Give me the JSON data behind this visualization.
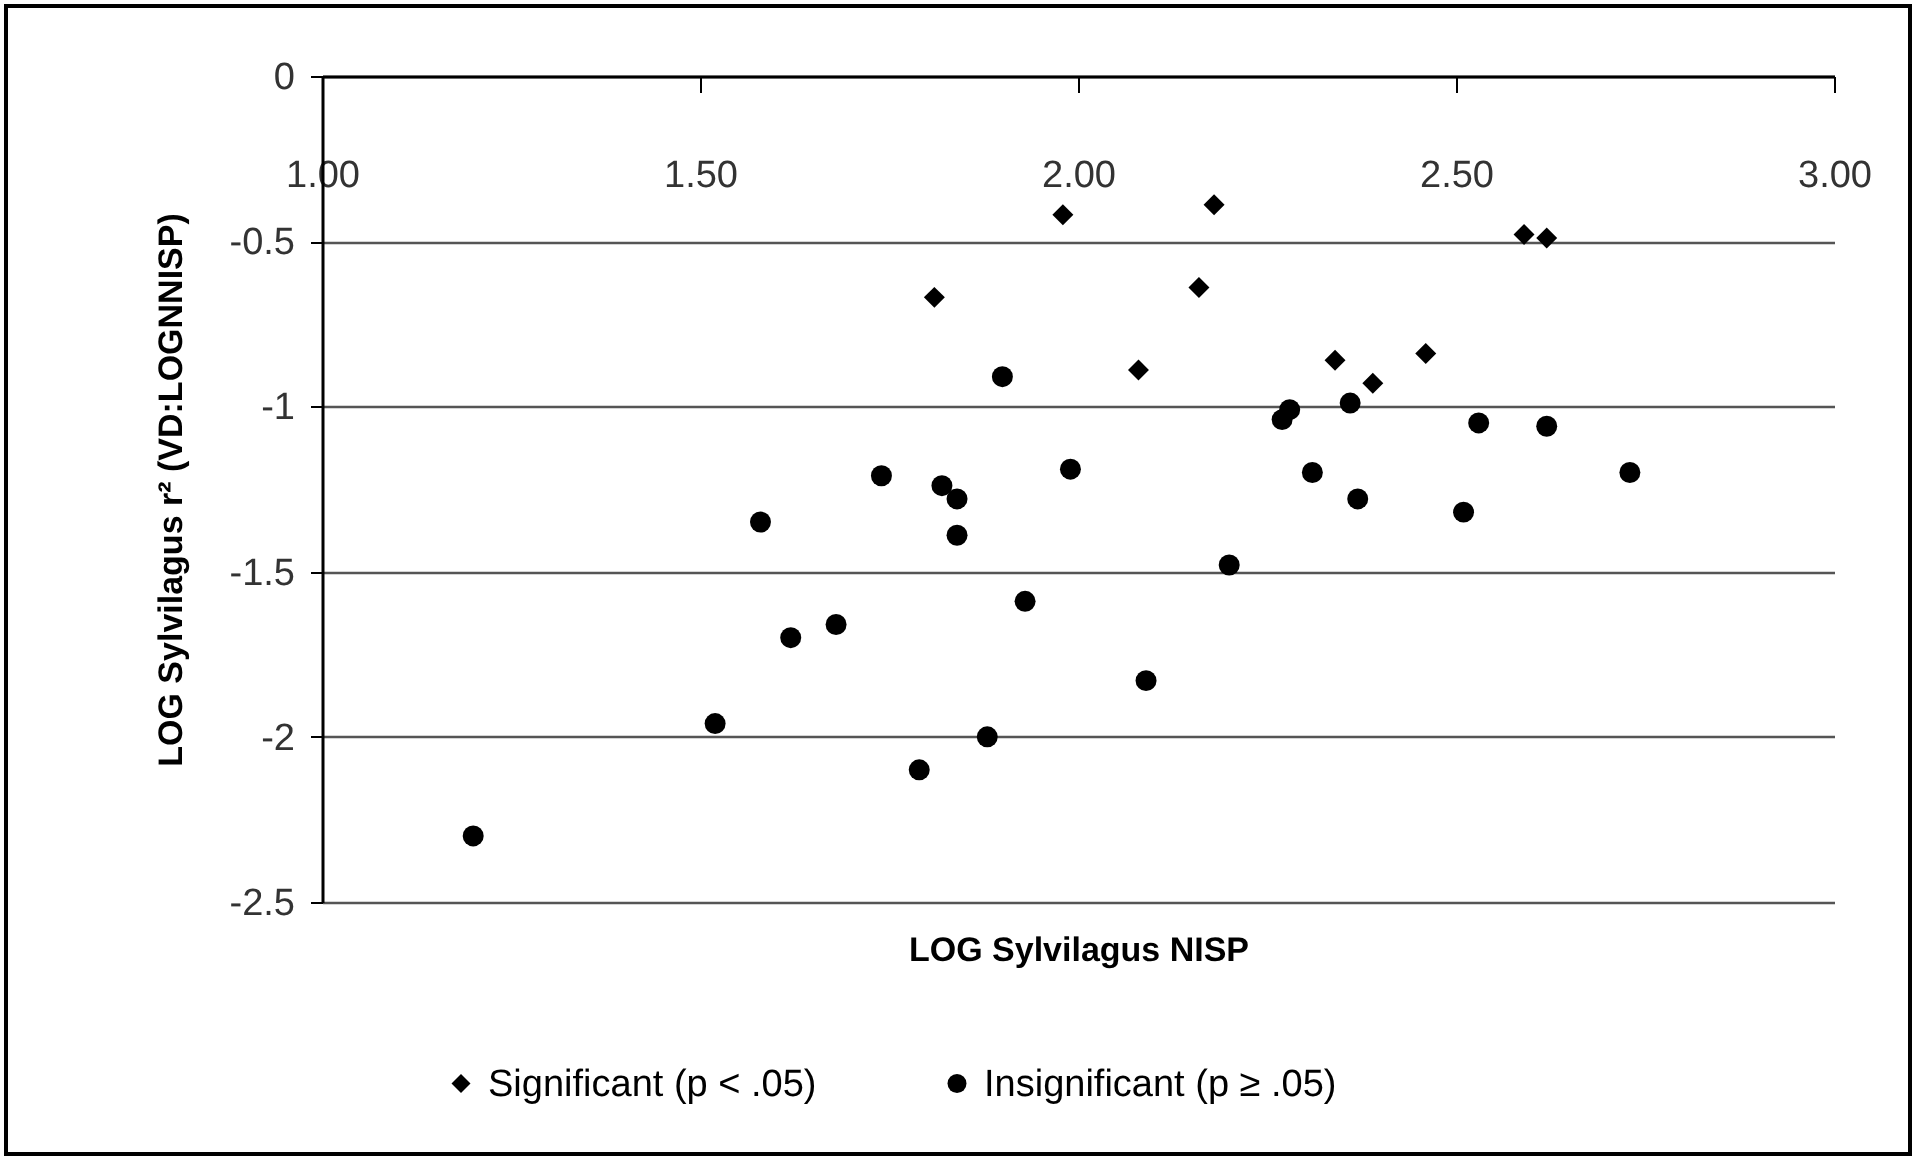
{
  "chart_data": {
    "type": "scatter",
    "xlabel": "LOG Sylvilagus NISP",
    "ylabel": "LOG Sylvilagus r² (VD:LOGNNISP)",
    "xlim": [
      1,
      3
    ],
    "xticks": [
      {
        "value": 1,
        "label": "1.00"
      },
      {
        "value": 1.5,
        "label": "1.50"
      },
      {
        "value": 2,
        "label": "2.00"
      },
      {
        "value": 2.5,
        "label": "2.50"
      },
      {
        "value": 3,
        "label": "3.00"
      }
    ],
    "ylim": [
      -2.5,
      0
    ],
    "yticks": [
      -2.5,
      -2,
      -1.5,
      -1,
      -0.5,
      0
    ],
    "grid": "y",
    "legend": "bottom",
    "series": [
      {
        "name": "Significant (p < .05)",
        "color": "#000000",
        "marker": "diamond",
        "x": [
          1.81,
          1.98,
          2.18,
          2.16,
          2.08,
          2.34,
          2.39,
          2.46,
          2.59,
          2.62
        ],
        "values": [
          -0.67,
          -0.42,
          -0.39,
          -0.64,
          -0.89,
          -0.86,
          -0.93,
          -0.84,
          -0.48,
          -0.49
        ]
      },
      {
        "name": "Insignificant (p ≥ .05)",
        "color": "#000000",
        "marker": "circle",
        "x": [
          1.9,
          1.99,
          1.74,
          1.82,
          1.84,
          1.58,
          1.84,
          1.93,
          1.68,
          1.62,
          1.52,
          1.88,
          1.79,
          1.2,
          2.28,
          2.27,
          2.36,
          2.53,
          2.62,
          2.31,
          2.73,
          2.37,
          2.51,
          2.2,
          2.09
        ],
        "values": [
          -0.91,
          -1.19,
          -1.21,
          -1.24,
          -1.28,
          -1.35,
          -1.39,
          -1.59,
          -1.66,
          -1.7,
          -1.96,
          -2.0,
          -2.1,
          -2.3,
          -1.01,
          -1.04,
          -0.99,
          -1.05,
          -1.06,
          -1.2,
          -1.2,
          -1.28,
          -1.32,
          -1.48,
          -1.83
        ]
      }
    ]
  }
}
